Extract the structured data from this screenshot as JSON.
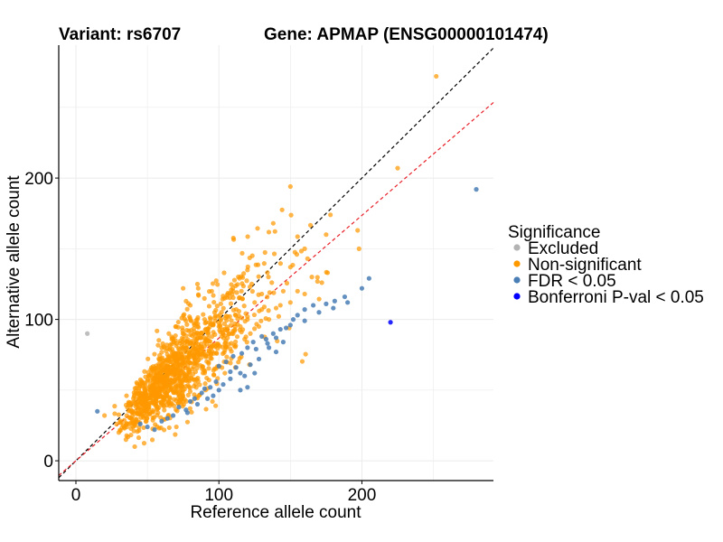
{
  "chart_data": {
    "type": "scatter",
    "title_left": "Variant: rs6707",
    "title_right": "Gene: APMAP (ENSG00000101474)",
    "xlabel": "Reference allele count",
    "ylabel": "Alternative allele count",
    "xlim": [
      -12,
      292
    ],
    "ylim": [
      -14,
      294
    ],
    "x_ticks": [
      0,
      100,
      200
    ],
    "y_ticks": [
      0,
      100,
      200
    ],
    "grid": true,
    "reference_lines": [
      {
        "name": "identity",
        "slope": 1.0,
        "intercept": 0,
        "color": "#000000",
        "dash": "dashed"
      },
      {
        "name": "allelic-ratio",
        "slope": 0.868,
        "intercept": 0,
        "color": "#e8202a",
        "dash": "dashed"
      }
    ],
    "legend": {
      "title": "Significance",
      "position": "right",
      "entries": [
        {
          "label": "Excluded",
          "color": "#b3b3b3"
        },
        {
          "label": "Non-significant",
          "color": "#ff9900"
        },
        {
          "label": "FDR < 0.05",
          "color": "#4a7eb5"
        },
        {
          "label": "Bonferroni P-val < 0.05",
          "color": "#0000ff"
        }
      ]
    },
    "series": [
      {
        "name": "Excluded",
        "color": "#b3b3b3",
        "points": [
          [
            8,
            90
          ]
        ]
      },
      {
        "name": "Bonferroni P-val < 0.05",
        "color": "#0000ff",
        "points": [
          [
            220,
            98
          ]
        ]
      },
      {
        "name": "FDR < 0.05",
        "color": "#4a7eb5",
        "points": [
          [
            280,
            192
          ],
          [
            205,
            129
          ],
          [
            200,
            122
          ],
          [
            190,
            112
          ],
          [
            181,
            113
          ],
          [
            175,
            111
          ],
          [
            166,
            110
          ],
          [
            160,
            107
          ],
          [
            155,
            103
          ],
          [
            152,
            100
          ],
          [
            147,
            94
          ],
          [
            143,
            93
          ],
          [
            138,
            90
          ],
          [
            133,
            86
          ],
          [
            130,
            88
          ],
          [
            124,
            84
          ],
          [
            120,
            80
          ],
          [
            116,
            76
          ],
          [
            110,
            74
          ],
          [
            105,
            70
          ],
          [
            100,
            67
          ],
          [
            125,
            62
          ],
          [
            118,
            60
          ],
          [
            112,
            66
          ],
          [
            108,
            58
          ],
          [
            103,
            54
          ],
          [
            98,
            56
          ],
          [
            94,
            52
          ],
          [
            92,
            44
          ],
          [
            88,
            48
          ],
          [
            85,
            40
          ],
          [
            80,
            42
          ],
          [
            77,
            36
          ],
          [
            72,
            38
          ],
          [
            68,
            32
          ],
          [
            64,
            30
          ],
          [
            60,
            28
          ],
          [
            55,
            22
          ],
          [
            50,
            24
          ],
          [
            45,
            26
          ],
          [
            135,
            80
          ],
          [
            140,
            77
          ],
          [
            128,
            72
          ],
          [
            122,
            68
          ],
          [
            115,
            62
          ],
          [
            108,
            63
          ],
          [
            100,
            50
          ],
          [
            96,
            46
          ],
          [
            90,
            51
          ],
          [
            115,
            50
          ],
          [
            120,
            52
          ],
          [
            83,
            44
          ],
          [
            78,
            34
          ],
          [
            140,
            87
          ],
          [
            145,
            84
          ],
          [
            160,
            99
          ],
          [
            180,
            108
          ],
          [
            170,
            105
          ],
          [
            15,
            35
          ],
          [
            188,
            116
          ],
          [
            150,
            96
          ],
          [
            134,
            83
          ],
          [
            126,
            79
          ]
        ]
      },
      {
        "name": "Non-significant",
        "color": "#ff9900",
        "generated": "approximately 1200 points clustered along the diagonal, ref mostly 30-140, alt mostly 20-140",
        "points": [
          [
            252,
            272
          ],
          [
            225,
            207
          ],
          [
            150,
            194
          ],
          [
            198,
            150
          ],
          [
            197,
            163
          ],
          [
            178,
            174
          ],
          [
            175,
            160
          ],
          [
            160,
            150
          ],
          [
            138,
            168
          ],
          [
            162,
            143
          ],
          [
            165,
            130
          ],
          [
            176,
            133
          ],
          [
            150,
            137
          ],
          [
            137,
            126
          ],
          [
            172,
            126
          ],
          [
            130,
            118
          ],
          [
            125,
            112
          ],
          [
            130,
            107
          ],
          [
            145,
            120
          ],
          [
            110,
            120
          ],
          [
            104,
            115
          ],
          [
            95,
            120
          ],
          [
            85,
            125
          ],
          [
            75,
            122
          ],
          [
            120,
            102
          ],
          [
            140,
            108
          ],
          [
            155,
            120
          ],
          [
            20,
            32
          ],
          [
            30,
            20
          ],
          [
            35,
            15
          ],
          [
            45,
            48
          ],
          [
            55,
            65
          ],
          [
            60,
            80
          ],
          [
            65,
            90
          ],
          [
            70,
            95
          ],
          [
            80,
            110
          ],
          [
            90,
            100
          ],
          [
            100,
            95
          ],
          [
            105,
            85
          ],
          [
            110,
            90
          ],
          [
            115,
            95
          ],
          [
            120,
            100
          ],
          [
            42,
            40
          ],
          [
            48,
            55
          ],
          [
            52,
            50
          ],
          [
            58,
            60
          ],
          [
            62,
            58
          ],
          [
            66,
            70
          ],
          [
            72,
            75
          ],
          [
            76,
            68
          ],
          [
            82,
            80
          ],
          [
            86,
            78
          ],
          [
            92,
            85
          ],
          [
            96,
            82
          ],
          [
            102,
            88
          ],
          [
            106,
            92
          ],
          [
            160,
            118
          ],
          [
            150,
            112
          ],
          [
            143,
            110
          ],
          [
            135,
            100
          ],
          [
            128,
            95
          ],
          [
            122,
            90
          ],
          [
            118,
            86
          ]
        ]
      }
    ]
  }
}
